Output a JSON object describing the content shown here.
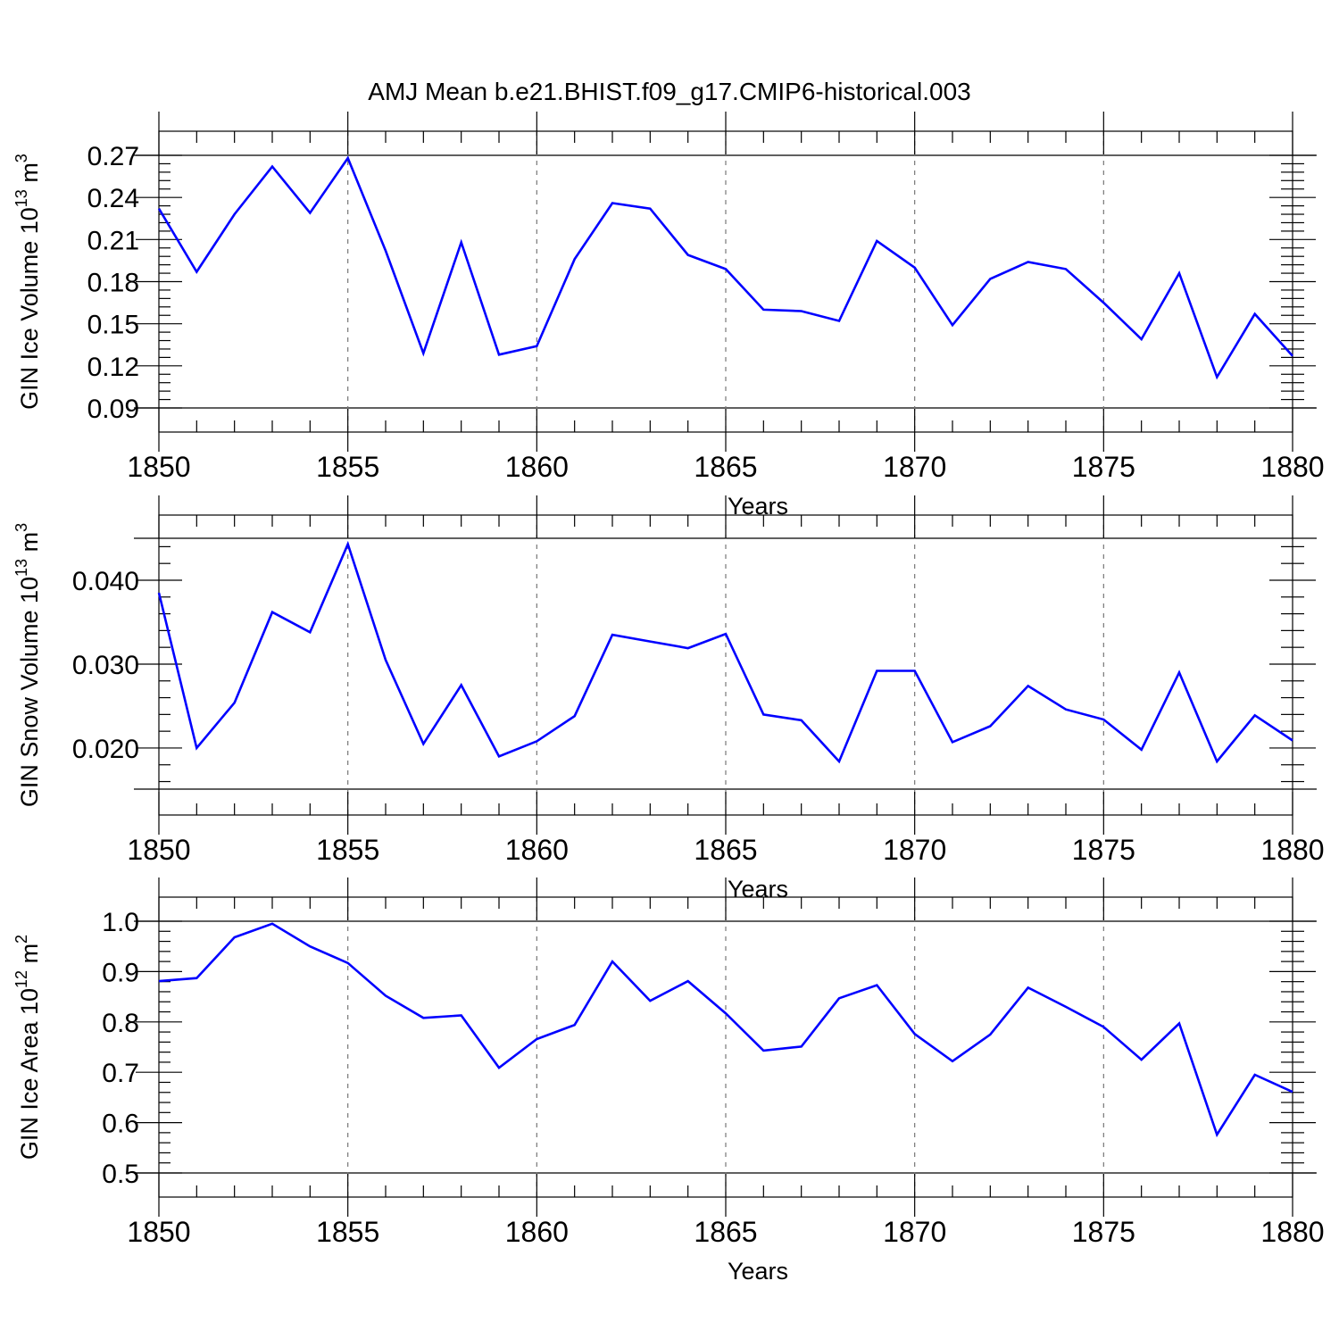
{
  "title": "AMJ Mean b.e21.BHIST.f09_g17.CMIP6-historical.003",
  "chart_data": [
    {
      "type": "line",
      "ylabel": {
        "text": "GIN Ice Volume 10",
        "sup": "13",
        "unit": " m",
        "unit_sup": "3"
      },
      "xlabel": "Years",
      "xlim": [
        1850,
        1880
      ],
      "ylim": [
        0.09,
        0.27
      ],
      "yticks": [
        0.09,
        0.12,
        0.15,
        0.18,
        0.21,
        0.24,
        0.27
      ],
      "ytick_labels": [
        "0.09",
        "0.12",
        "0.15",
        "0.18",
        "0.21",
        "0.24",
        "0.27"
      ],
      "xticks": [
        1850,
        1855,
        1860,
        1865,
        1870,
        1875,
        1880
      ],
      "xtick_labels": [
        "1850",
        "1855",
        "1860",
        "1865",
        "1870",
        "1875",
        "1880"
      ],
      "ref_value": 0.27,
      "grid": "dashed vertical at major x ticks",
      "color": "#0000ff",
      "x": [
        1850,
        1851,
        1852,
        1853,
        1854,
        1855,
        1856,
        1857,
        1858,
        1859,
        1860,
        1861,
        1862,
        1863,
        1864,
        1865,
        1866,
        1867,
        1868,
        1869,
        1870,
        1871,
        1872,
        1873,
        1874,
        1875,
        1876,
        1877,
        1878,
        1879,
        1880
      ],
      "y": [
        0.232,
        0.187,
        0.228,
        0.262,
        0.229,
        0.268,
        0.202,
        0.129,
        0.208,
        0.128,
        0.134,
        0.196,
        0.236,
        0.232,
        0.199,
        0.189,
        0.16,
        0.159,
        0.152,
        0.209,
        0.19,
        0.149,
        0.182,
        0.194,
        0.189,
        0.165,
        0.139,
        0.186,
        0.112,
        0.157,
        0.127
      ]
    },
    {
      "type": "line",
      "ylabel": {
        "text": "GIN Snow Volume 10",
        "sup": "13",
        "unit": " m",
        "unit_sup": "3"
      },
      "xlabel": "Years",
      "xlim": [
        1850,
        1880
      ],
      "ylim": [
        0.0151,
        0.045
      ],
      "yticks": [
        0.02,
        0.03,
        0.04
      ],
      "ytick_labels": [
        "0.020",
        "0.030",
        "0.040"
      ],
      "xticks": [
        1850,
        1855,
        1860,
        1865,
        1870,
        1875,
        1880
      ],
      "xtick_labels": [
        "1850",
        "1855",
        "1860",
        "1865",
        "1870",
        "1875",
        "1880"
      ],
      "ref_value": 0.045,
      "ref_value_low": 0.0151,
      "grid": "dashed vertical at major x ticks",
      "color": "#0000ff",
      "x": [
        1850,
        1851,
        1852,
        1853,
        1854,
        1855,
        1856,
        1857,
        1858,
        1859,
        1860,
        1861,
        1862,
        1863,
        1864,
        1865,
        1866,
        1867,
        1868,
        1869,
        1870,
        1871,
        1872,
        1873,
        1874,
        1875,
        1876,
        1877,
        1878,
        1879,
        1880
      ],
      "y": [
        0.0385,
        0.02,
        0.0254,
        0.0362,
        0.0338,
        0.0443,
        0.0305,
        0.0205,
        0.0275,
        0.019,
        0.0208,
        0.0238,
        0.0335,
        0.0327,
        0.0319,
        0.0336,
        0.024,
        0.0233,
        0.0184,
        0.0292,
        0.0292,
        0.0207,
        0.0226,
        0.0274,
        0.0246,
        0.0234,
        0.0198,
        0.029,
        0.0184,
        0.0239,
        0.0209
      ]
    },
    {
      "type": "line",
      "ylabel": {
        "text": "GIN Ice Area 10",
        "sup": "12",
        "unit": " m",
        "unit_sup": "2"
      },
      "xlabel": "Years",
      "xlim": [
        1850,
        1880
      ],
      "ylim": [
        0.5,
        1.0
      ],
      "yticks": [
        0.5,
        0.6,
        0.7,
        0.8,
        0.9,
        1.0
      ],
      "ytick_labels": [
        "0.5",
        "0.6",
        "0.7",
        "0.8",
        "0.9",
        "1.0"
      ],
      "xticks": [
        1850,
        1855,
        1860,
        1865,
        1870,
        1875,
        1880
      ],
      "xtick_labels": [
        "1850",
        "1855",
        "1860",
        "1865",
        "1870",
        "1875",
        "1880"
      ],
      "ref_value": 1.0,
      "grid": "dashed vertical at major x ticks",
      "color": "#0000ff",
      "x": [
        1850,
        1851,
        1852,
        1853,
        1854,
        1855,
        1856,
        1857,
        1858,
        1859,
        1860,
        1861,
        1862,
        1863,
        1864,
        1865,
        1866,
        1867,
        1868,
        1869,
        1870,
        1871,
        1872,
        1873,
        1874,
        1875,
        1876,
        1877,
        1878,
        1879,
        1880
      ],
      "y": [
        0.881,
        0.887,
        0.968,
        0.995,
        0.95,
        0.917,
        0.852,
        0.808,
        0.813,
        0.709,
        0.766,
        0.794,
        0.92,
        0.842,
        0.881,
        0.817,
        0.743,
        0.751,
        0.847,
        0.873,
        0.776,
        0.722,
        0.775,
        0.868,
        0.83,
        0.79,
        0.725,
        0.797,
        0.576,
        0.695,
        0.661
      ]
    }
  ]
}
